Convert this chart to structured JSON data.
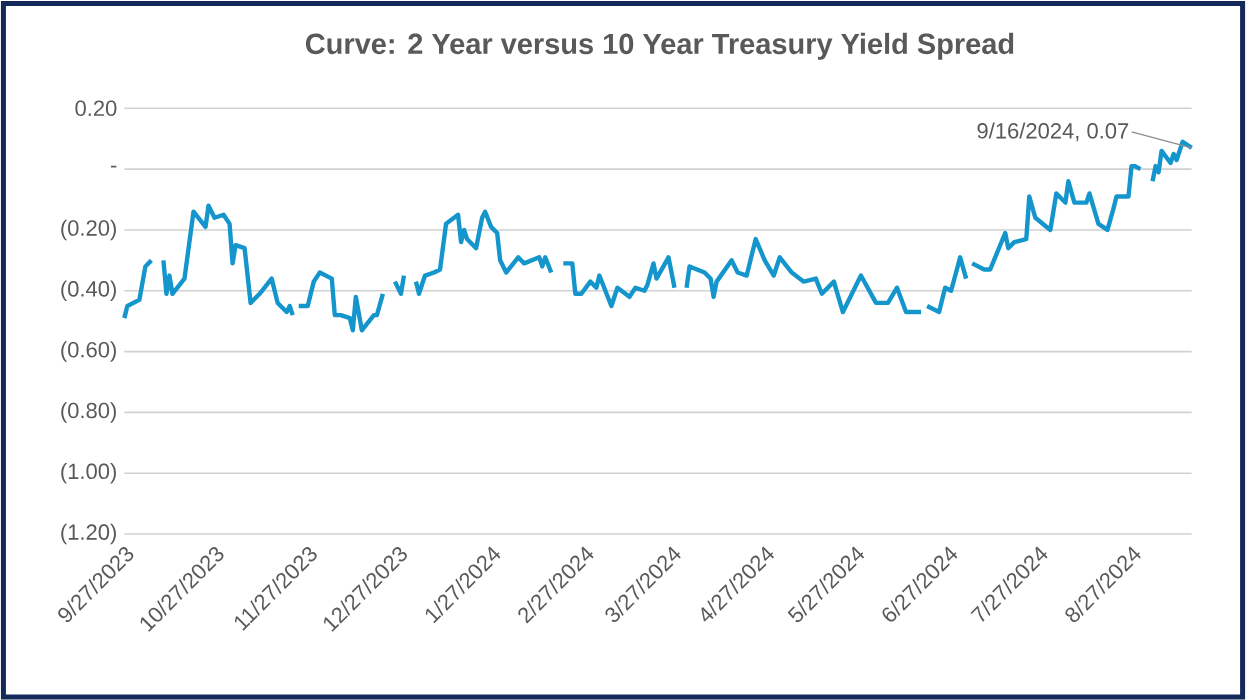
{
  "chart_data": {
    "type": "line",
    "title": "Curve: 2 Year versus 10 Year Treasury Yield Spread",
    "x": [
      "2023-09-27",
      "2023-09-28",
      "2023-10-02",
      "2023-10-04",
      "2023-10-06",
      "2023-10-09",
      "2023-10-10",
      "2023-10-11",
      "2023-10-12",
      "2023-10-13",
      "2023-10-17",
      "2023-10-20",
      "2023-10-24",
      "2023-10-25",
      "2023-10-27",
      "2023-10-30",
      "2023-11-01",
      "2023-11-02",
      "2023-11-03",
      "2023-11-06",
      "2023-11-08",
      "2023-11-11",
      "2023-11-15",
      "2023-11-17",
      "2023-11-20",
      "2023-11-21",
      "2023-11-22",
      "2023-11-23",
      "2023-11-24",
      "2023-11-27",
      "2023-11-29",
      "2023-12-01",
      "2023-12-05",
      "2023-12-06",
      "2023-12-08",
      "2023-12-11",
      "2023-12-12",
      "2023-12-13",
      "2023-12-15",
      "2023-12-19",
      "2023-12-20",
      "2023-12-22",
      "2023-12-25",
      "2023-12-26",
      "2023-12-28",
      "2023-12-29",
      "2024-01-01",
      "2024-01-02",
      "2024-01-03",
      "2024-01-05",
      "2024-01-08",
      "2024-01-10",
      "2024-01-12",
      "2024-01-16",
      "2024-01-17",
      "2024-01-18",
      "2024-01-19",
      "2024-01-22",
      "2024-01-24",
      "2024-01-25",
      "2024-01-27",
      "2024-01-29",
      "2024-01-30",
      "2024-02-01",
      "2024-02-05",
      "2024-02-07",
      "2024-02-12",
      "2024-02-13",
      "2024-02-14",
      "2024-02-16",
      "2024-02-19",
      "2024-02-20",
      "2024-02-23",
      "2024-02-24",
      "2024-02-26",
      "2024-02-29",
      "2024-03-02",
      "2024-03-03",
      "2024-03-07",
      "2024-03-09",
      "2024-03-13",
      "2024-03-15",
      "2024-03-18",
      "2024-03-19",
      "2024-03-21",
      "2024-03-22",
      "2024-03-26",
      "2024-03-28",
      "2024-03-29",
      "2024-04-01",
      "2024-04-02",
      "2024-04-07",
      "2024-04-09",
      "2024-04-10",
      "2024-04-11",
      "2024-04-16",
      "2024-04-18",
      "2024-04-21",
      "2024-04-24",
      "2024-04-27",
      "2024-04-30",
      "2024-05-02",
      "2024-05-06",
      "2024-05-10",
      "2024-05-14",
      "2024-05-16",
      "2024-05-20",
      "2024-05-23",
      "2024-05-29",
      "2024-06-03",
      "2024-06-07",
      "2024-06-10",
      "2024-06-13",
      "2024-06-18",
      "2024-06-19",
      "2024-06-20",
      "2024-06-24",
      "2024-06-26",
      "2024-06-28",
      "2024-07-01",
      "2024-07-03",
      "2024-07-04",
      "2024-07-05",
      "2024-07-09",
      "2024-07-11",
      "2024-07-16",
      "2024-07-17",
      "2024-07-19",
      "2024-07-23",
      "2024-07-24",
      "2024-07-26",
      "2024-07-31",
      "2024-08-02",
      "2024-08-05",
      "2024-08-06",
      "2024-08-08",
      "2024-08-12",
      "2024-08-13",
      "2024-08-16",
      "2024-08-19",
      "2024-08-21",
      "2024-08-22",
      "2024-08-26",
      "2024-08-27",
      "2024-08-28",
      "2024-08-30",
      "2024-09-02",
      "2024-09-03",
      "2024-09-04",
      "2024-09-05",
      "2024-09-06",
      "2024-09-09",
      "2024-09-10",
      "2024-09-11",
      "2024-09-13",
      "2024-09-16"
    ],
    "values": [
      -0.49,
      -0.45,
      -0.43,
      -0.32,
      -0.3,
      null,
      -0.3,
      -0.41,
      -0.35,
      -0.41,
      -0.36,
      -0.14,
      -0.19,
      -0.12,
      -0.16,
      -0.15,
      -0.18,
      -0.31,
      -0.25,
      -0.26,
      -0.44,
      -0.41,
      -0.36,
      -0.44,
      -0.47,
      -0.45,
      -0.48,
      null,
      -0.45,
      -0.45,
      -0.37,
      -0.34,
      -0.36,
      -0.48,
      -0.48,
      -0.49,
      -0.53,
      -0.42,
      -0.53,
      -0.48,
      -0.48,
      -0.41,
      null,
      -0.37,
      -0.41,
      -0.35,
      null,
      -0.37,
      -0.41,
      -0.35,
      -0.34,
      -0.33,
      -0.18,
      -0.15,
      -0.24,
      -0.2,
      -0.23,
      -0.26,
      -0.16,
      -0.14,
      -0.19,
      -0.21,
      -0.3,
      -0.34,
      -0.29,
      -0.31,
      -0.29,
      -0.32,
      -0.29,
      -0.34,
      null,
      -0.31,
      -0.31,
      -0.41,
      -0.41,
      -0.37,
      -0.39,
      -0.35,
      -0.45,
      -0.39,
      -0.42,
      -0.39,
      -0.4,
      -0.38,
      -0.31,
      -0.36,
      -0.29,
      -0.39,
      null,
      -0.39,
      -0.32,
      -0.34,
      -0.36,
      -0.42,
      -0.37,
      -0.3,
      -0.34,
      -0.35,
      -0.23,
      -0.3,
      -0.35,
      -0.29,
      -0.34,
      -0.37,
      -0.36,
      -0.41,
      -0.37,
      -0.47,
      -0.35,
      -0.44,
      -0.44,
      -0.39,
      -0.47,
      -0.47,
      null,
      -0.45,
      -0.47,
      -0.39,
      -0.4,
      -0.29,
      -0.36,
      null,
      -0.31,
      -0.33,
      -0.33,
      -0.21,
      -0.26,
      -0.24,
      -0.23,
      -0.09,
      -0.16,
      -0.2,
      -0.08,
      -0.11,
      -0.04,
      -0.11,
      -0.11,
      -0.08,
      -0.18,
      -0.2,
      -0.13,
      -0.09,
      -0.09,
      0.01,
      0.01,
      0.0,
      null,
      -0.04,
      0.01,
      -0.01,
      0.06,
      0.02,
      0.05,
      0.03,
      0.09,
      0.07
    ],
    "color": "#1496cc",
    "xlim": [
      "2023-09-27",
      "2024-09-16"
    ],
    "xticks": [
      {
        "value": "2023-09-27",
        "label": "9/27/2023"
      },
      {
        "value": "2023-10-27",
        "label": "10/27/2023"
      },
      {
        "value": "2023-11-27",
        "label": "11/27/2023"
      },
      {
        "value": "2023-12-27",
        "label": "12/27/2023"
      },
      {
        "value": "2024-01-27",
        "label": "1/27/2024"
      },
      {
        "value": "2024-02-27",
        "label": "2/27/2024"
      },
      {
        "value": "2024-03-27",
        "label": "3/27/2024"
      },
      {
        "value": "2024-04-27",
        "label": "4/27/2024"
      },
      {
        "value": "2024-05-27",
        "label": "5/27/2024"
      },
      {
        "value": "2024-06-27",
        "label": "6/27/2024"
      },
      {
        "value": "2024-07-27",
        "label": "7/27/2024"
      },
      {
        "value": "2024-08-27",
        "label": "8/27/2024"
      }
    ],
    "ylim": [
      -1.2,
      0.2
    ],
    "yticks": [
      {
        "value": 0.2,
        "label": "0.20"
      },
      {
        "value": 0,
        "label": "-"
      },
      {
        "value": -0.2,
        "label": "(0.20)"
      },
      {
        "value": -0.4,
        "label": "(0.40)"
      },
      {
        "value": -0.6,
        "label": "(0.60)"
      },
      {
        "value": -0.8,
        "label": "(0.80)"
      },
      {
        "value": -1.0,
        "label": "(1.00)"
      },
      {
        "value": -1.2,
        "label": "(1.20)"
      }
    ],
    "grid": "y",
    "annotations": [
      {
        "text": "9/16/2024,  0.07",
        "x": "2024-09-16",
        "y": 0.07
      }
    ]
  }
}
